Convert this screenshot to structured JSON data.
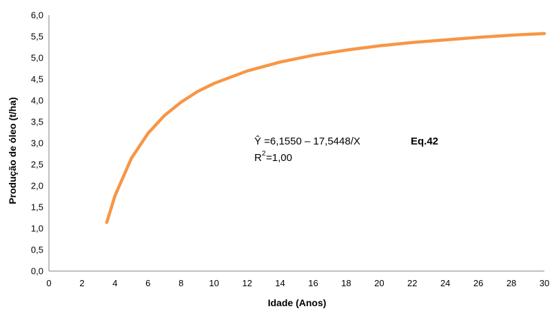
{
  "chart_data": {
    "type": "line",
    "title": "",
    "xlabel": "Idade (Anos)",
    "ylabel": "Produção de óleo (t/ha)",
    "xlim": [
      0,
      30
    ],
    "ylim": [
      0,
      6
    ],
    "x_ticks": [
      "0",
      "2",
      "4",
      "6",
      "8",
      "10",
      "12",
      "14",
      "16",
      "18",
      "20",
      "22",
      "24",
      "26",
      "28",
      "30"
    ],
    "y_ticks": [
      "0,0",
      "0,5",
      "1,0",
      "1,5",
      "2,0",
      "2,5",
      "3,0",
      "3,5",
      "4,0",
      "4,5",
      "5,0",
      "5,5",
      "6,0"
    ],
    "grid": false,
    "legend": "none",
    "series": [
      {
        "color": "#F79646",
        "x": [
          3.5,
          4,
          5,
          6,
          7,
          8,
          9,
          10,
          12,
          14,
          16,
          18,
          20,
          22,
          24,
          26,
          28,
          30
        ],
        "y": [
          1.14,
          1.77,
          2.65,
          3.23,
          3.65,
          3.96,
          4.21,
          4.4,
          4.69,
          4.9,
          5.06,
          5.18,
          5.28,
          5.36,
          5.42,
          5.48,
          5.53,
          5.57
        ]
      }
    ],
    "annotations": {
      "equation_prefix": "Ŷ =6,1550 – 17,5448/X",
      "equation_tag": "Eq.42",
      "r2_base": "R",
      "r2_sup": "2",
      "r2_value": "=1,00"
    }
  }
}
